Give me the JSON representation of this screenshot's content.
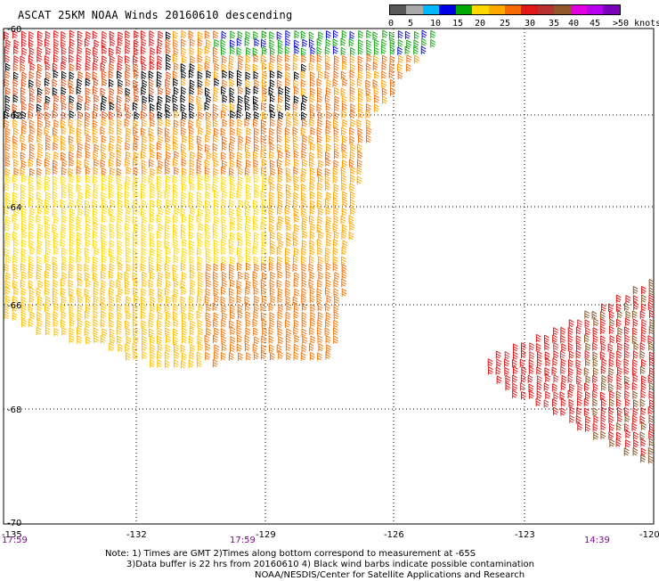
{
  "title": "ASCAT 25KM NOAA Winds 20160610 descending",
  "legend": {
    "colors": [
      "#585858",
      "#a8a8a8",
      "#00b8ff",
      "#0000e8",
      "#00a800",
      "#ffd800",
      "#ffa800",
      "#f46a00",
      "#e01818",
      "#b83030",
      "#905828",
      "#e000e0",
      "#b800f0",
      "#7a00b8"
    ],
    "labels": [
      "0",
      "5",
      "10",
      "15",
      "20",
      "25",
      "30",
      "35",
      "40",
      "45",
      ">50 knots"
    ]
  },
  "axes": {
    "lon_labels": [
      "-135",
      "-132",
      "-129",
      "-126",
      "-123",
      "-120"
    ],
    "lat_labels": [
      "-60",
      "-62",
      "-64",
      "-66",
      "-68",
      "-70"
    ]
  },
  "pass_times": [
    "17:59",
    "17:59",
    "14:39"
  ],
  "notes": [
    "Note: 1) Times are GMT 2)Times along bottom correspond to measurement at -65S",
    "3)Data buffer is 22 hrs from 20160610 4) Black wind barbs indicate possible contamination",
    "NOAA/NESDIS/Center for Satellite Applications and Research"
  ]
}
